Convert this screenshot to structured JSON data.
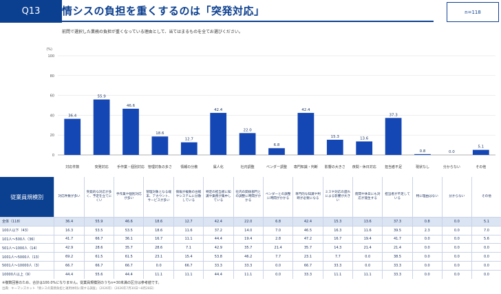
{
  "question_number": "Q13",
  "title": "情シスの負担を重くするのは「突発対応」",
  "n_label": "n=118",
  "question_text": "前問で選択した業務の負担が重くなっている理由として、当てはまるものを全てお選びください。",
  "colors": {
    "bar": "#1446b4",
    "accent": "#0b3f8f",
    "total_row_bg": "#dbe4f3"
  },
  "chart_data": {
    "type": "bar",
    "yunit": "(%)",
    "ylim": [
      0,
      100
    ],
    "yticks": [
      0,
      20,
      40,
      60,
      80,
      100
    ],
    "grid": true,
    "categories": [
      "対応件数",
      "突発対応",
      "手作業・個別対応",
      "管理対象の多さ",
      "情報の分散",
      "属人化",
      "社内調整",
      "ベンダー調整",
      "専門知識・判断",
      "影響の大きさ",
      "夜間・休日対応",
      "担当者不足",
      "現状なし",
      "分からない",
      "その他"
    ],
    "values": [
      36.4,
      55.9,
      46.6,
      18.6,
      12.7,
      42.4,
      22.0,
      6.8,
      42.4,
      15.3,
      13.6,
      37.3,
      0.8,
      0.0,
      5.1
    ]
  },
  "table": {
    "segment_header": "従業員規模別",
    "columns": [
      "対応件数が多い",
      "突発的な対応が多く、予定を立てにくい",
      "手作業や個別対応が多い",
      "管理対象となる端末、アカウント、サービスが多い",
      "情報が複数の台帳やシステムに分散している",
      "特定の担当者に知識や業務が集中している",
      "社内の関係部門との調整に時間がかかる",
      "ベンダーとの調整に時間がかかる",
      "専門的な知識や判断が必要になる",
      "ミスや対応の遅れによる影響が大きい",
      "夜間や休日にも対応が発生する",
      "担当者が不足している",
      "特に理由はない",
      "分からない",
      "その他"
    ],
    "rows": [
      {
        "label": "全体（118）",
        "values": [
          "36.4",
          "55.9",
          "46.6",
          "18.6",
          "12.7",
          "42.4",
          "22.0",
          "6.8",
          "42.4",
          "15.3",
          "13.6",
          "37.3",
          "0.8",
          "0.0",
          "5.1"
        ]
      },
      {
        "label": "100人以下（43）",
        "values": [
          "16.3",
          "53.5",
          "53.5",
          "18.6",
          "11.6",
          "37.2",
          "14.0",
          "7.0",
          "46.5",
          "16.3",
          "11.6",
          "39.5",
          "2.3",
          "0.0",
          "7.0"
        ]
      },
      {
        "label": "101人～500人（36）",
        "values": [
          "41.7",
          "66.7",
          "36.1",
          "16.7",
          "11.1",
          "44.4",
          "19.4",
          "2.8",
          "47.2",
          "16.7",
          "19.4",
          "41.7",
          "0.0",
          "0.0",
          "5.6"
        ]
      },
      {
        "label": "501人～1000人（14）",
        "values": [
          "42.9",
          "28.6",
          "35.7",
          "28.6",
          "7.1",
          "42.9",
          "35.7",
          "21.4",
          "35.7",
          "14.3",
          "21.4",
          "21.4",
          "0.0",
          "0.0",
          "0.0"
        ]
      },
      {
        "label": "1001人～5000人（13）",
        "values": [
          "69.2",
          "61.5",
          "61.5",
          "23.1",
          "15.4",
          "53.8",
          "46.2",
          "7.7",
          "23.1",
          "7.7",
          "0.0",
          "38.5",
          "0.0",
          "0.0",
          "0.0"
        ]
      },
      {
        "label": "5001人～10000人（3）",
        "values": [
          "66.7",
          "66.7",
          "66.7",
          "0.0",
          "66.7",
          "33.3",
          "33.3",
          "0.0",
          "66.7",
          "33.3",
          "0.0",
          "33.3",
          "0.0",
          "0.0",
          "0.0"
        ]
      },
      {
        "label": "10000人以上（9）",
        "values": [
          "44.4",
          "55.6",
          "44.4",
          "11.1",
          "11.1",
          "44.4",
          "11.1",
          "0.0",
          "33.3",
          "11.1",
          "11.1",
          "33.3",
          "0.0",
          "0.0",
          "0.0"
        ]
      }
    ]
  },
  "notes": {
    "note1": "※複数回答のため、合計は100.0%になりません。従業員規模別のうちn=30未満の区分は参考値です。",
    "source": "出典：キーマンズネット「情シスの業務負担と運用体制に関する調査」（2026年）（2026年7月30日～8月28日）"
  }
}
